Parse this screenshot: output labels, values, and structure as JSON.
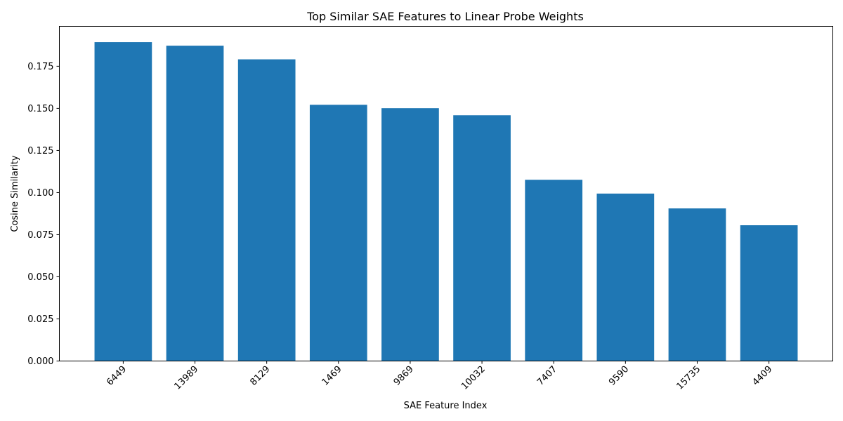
{
  "chart_data": {
    "type": "bar",
    "title": "Top Similar SAE Features to Linear Probe Weights",
    "xlabel": "SAE Feature Index",
    "ylabel": "Cosine Similarity",
    "categories": [
      "6449",
      "13989",
      "8129",
      "1469",
      "9869",
      "10032",
      "7407",
      "9590",
      "15735",
      "4409"
    ],
    "values": [
      0.1893,
      0.1872,
      0.1791,
      0.1521,
      0.1501,
      0.1459,
      0.1076,
      0.0994,
      0.0906,
      0.0806
    ],
    "ylim": [
      0,
      0.1987
    ],
    "yticks": [
      0.0,
      0.025,
      0.05,
      0.075,
      0.1,
      0.125,
      0.15,
      0.175
    ],
    "ytick_labels": [
      "0.000",
      "0.025",
      "0.050",
      "0.075",
      "0.100",
      "0.125",
      "0.150",
      "0.175"
    ],
    "bar_color": "#1f77b4",
    "grid": false,
    "legend": "none"
  }
}
